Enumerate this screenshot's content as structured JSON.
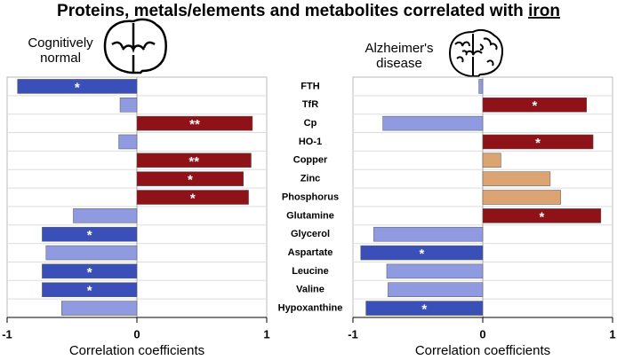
{
  "chart_data": {
    "type": "hbar",
    "title": "Proteins, metals/elements and metabolites correlated with",
    "title_emphasis": "iron",
    "xlabel": "Correlation coefficients",
    "xlim": [
      -1,
      1
    ],
    "xticks": [
      -1,
      0,
      1
    ],
    "categories": [
      "FTH",
      "TfR",
      "Cp",
      "HO-1",
      "Copper",
      "Zinc",
      "Phosphorus",
      "Glutamine",
      "Glycerol",
      "Aspartate",
      "Leucine",
      "Valine",
      "Hypoxanthine"
    ],
    "series": [
      {
        "name": "Cognitively normal",
        "values": [
          -0.92,
          -0.13,
          0.89,
          -0.14,
          0.88,
          0.82,
          0.86,
          -0.49,
          -0.73,
          -0.7,
          -0.73,
          -0.73,
          -0.58
        ],
        "colors": [
          "#3b4fb8",
          "#8f9ae0",
          "#8e1218",
          "#8f9ae0",
          "#8e1218",
          "#8e1218",
          "#8e1218",
          "#8f9ae0",
          "#3b4fb8",
          "#8f9ae0",
          "#3b4fb8",
          "#3b4fb8",
          "#8f9ae0"
        ],
        "labels": [
          "*",
          null,
          "**",
          null,
          "**",
          "*",
          "*",
          null,
          "*",
          null,
          "*",
          "*",
          null
        ]
      },
      {
        "name": "Alzheimer's disease",
        "values": [
          -0.03,
          0.8,
          -0.77,
          0.85,
          0.14,
          0.52,
          0.6,
          0.91,
          -0.84,
          -0.94,
          -0.74,
          -0.73,
          -0.9
        ],
        "colors": [
          "#8f9ae0",
          "#8e1218",
          "#8f9ae0",
          "#8e1218",
          "#dba472",
          "#dba472",
          "#dba472",
          "#8e1218",
          "#8f9ae0",
          "#3b4fb8",
          "#8f9ae0",
          "#8f9ae0",
          "#3b4fb8"
        ],
        "labels": [
          null,
          "*",
          null,
          "*",
          null,
          null,
          null,
          "*",
          null,
          "*",
          null,
          null,
          "*"
        ]
      }
    ]
  }
}
